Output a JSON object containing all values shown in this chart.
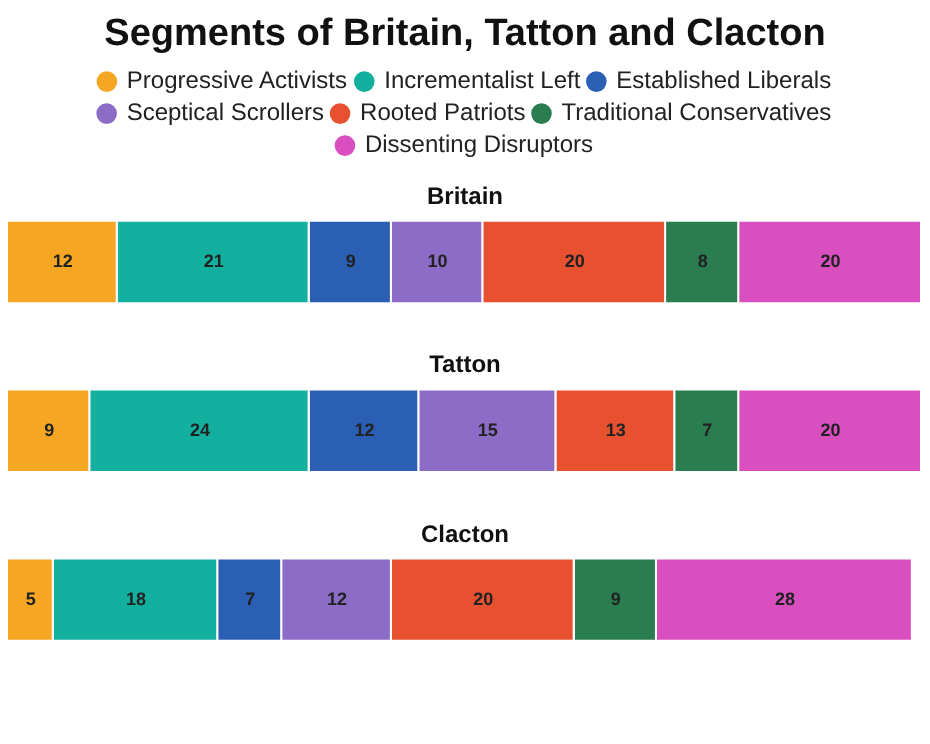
{
  "chart_data": {
    "type": "bar",
    "orientation": "horizontal",
    "stacked": true,
    "title": "Segments of Britain, Tatton and Clacton",
    "categories": [
      "Britain",
      "Tatton",
      "Clacton"
    ],
    "legend": "top",
    "data_labels": true,
    "series": [
      {
        "name": "Progressive Activists",
        "color": "#f5a623",
        "values": [
          12,
          9,
          5
        ]
      },
      {
        "name": "Incrementalist Left",
        "color": "#13b09f",
        "values": [
          21,
          24,
          18
        ]
      },
      {
        "name": "Established Liberals",
        "color": "#2b5fb3",
        "values": [
          9,
          12,
          7
        ]
      },
      {
        "name": "Sceptical Scrollers",
        "color": "#8c6cc6",
        "values": [
          10,
          15,
          12
        ]
      },
      {
        "name": "Rooted Patriots",
        "color": "#e8512f",
        "values": [
          20,
          13,
          20
        ]
      },
      {
        "name": "Traditional Conservatives",
        "color": "#2a7d4f",
        "values": [
          8,
          7,
          9
        ]
      },
      {
        "name": "Dissenting Disruptors",
        "color": "#d94fc0",
        "values": [
          20,
          20,
          28
        ]
      }
    ]
  }
}
